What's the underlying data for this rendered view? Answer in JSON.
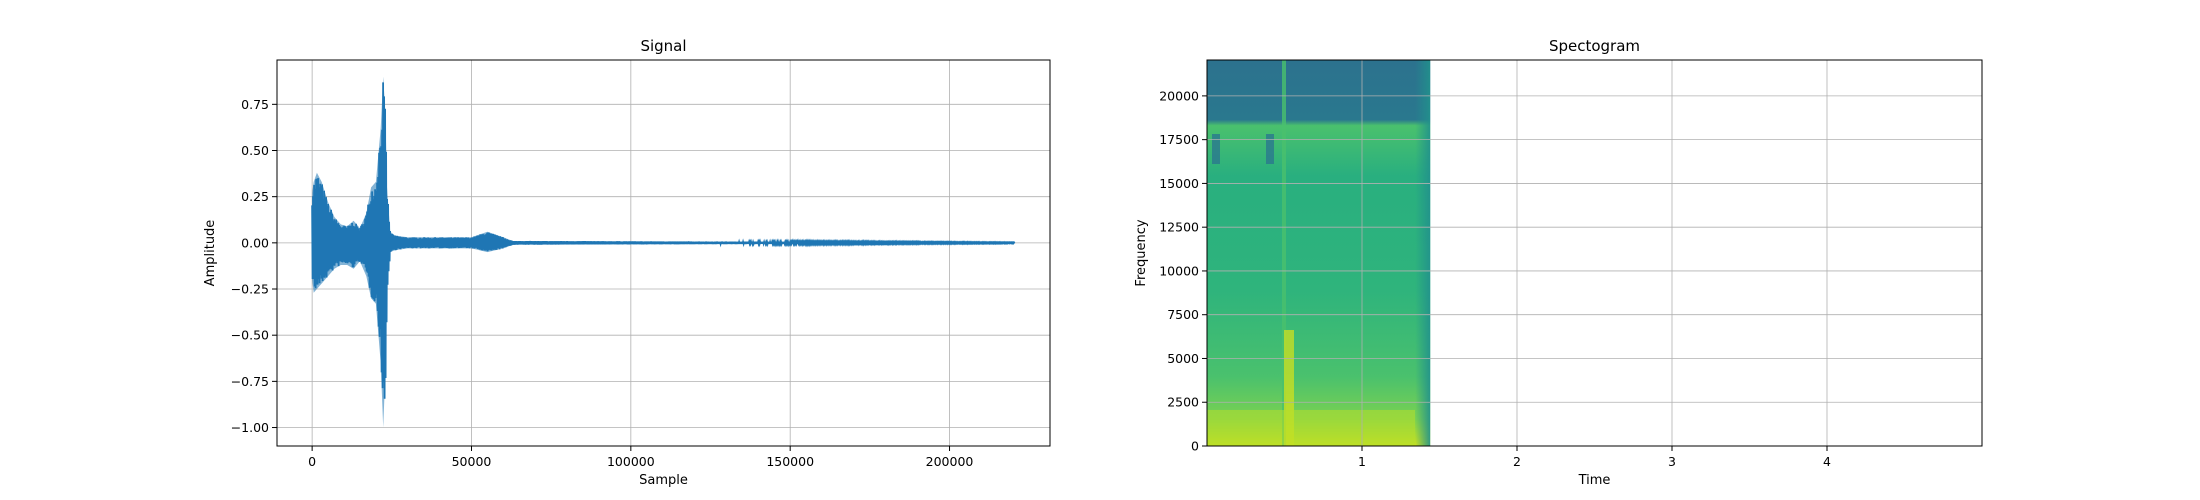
{
  "chart_data": [
    {
      "type": "line",
      "title": "Signal",
      "xlabel": "Sample",
      "ylabel": "Amplitude",
      "xlim": [
        -11025,
        231525
      ],
      "ylim": [
        -1.1,
        0.99
      ],
      "xticks": [
        0,
        50000,
        100000,
        150000,
        200000
      ],
      "xtick_labels": [
        "0",
        "50000",
        "100000",
        "150000",
        "200000"
      ],
      "yticks": [
        -1.0,
        -0.75,
        -0.5,
        -0.25,
        0.0,
        0.25,
        0.5,
        0.75
      ],
      "ytick_labels": [
        "−1.00",
        "−0.75",
        "−0.50",
        "−0.25",
        "0.00",
        "0.25",
        "0.50",
        "0.75"
      ],
      "grid": true,
      "color": "#1f77b4",
      "envelope": {
        "x": [
          0,
          500,
          1500,
          3000,
          5000,
          7000,
          9000,
          11000,
          13000,
          15000,
          17000,
          18500,
          20000,
          21500,
          22300,
          23000,
          23500,
          24500,
          26000,
          30000,
          40000,
          50000,
          55000,
          60000,
          63000,
          220500
        ],
        "max": [
          0.27,
          0.33,
          0.38,
          0.33,
          0.22,
          0.14,
          0.1,
          0.09,
          0.12,
          0.08,
          0.16,
          0.3,
          0.33,
          0.62,
          0.9,
          0.7,
          0.3,
          0.06,
          0.04,
          0.03,
          0.03,
          0.03,
          0.06,
          0.03,
          0.01,
          0.002
        ],
        "min": [
          -0.2,
          -0.27,
          -0.25,
          -0.22,
          -0.18,
          -0.14,
          -0.12,
          -0.12,
          -0.14,
          -0.1,
          -0.18,
          -0.3,
          -0.33,
          -0.65,
          -1.0,
          -0.7,
          -0.25,
          -0.05,
          -0.04,
          -0.03,
          -0.03,
          -0.03,
          -0.05,
          -0.03,
          -0.01,
          -0.002
        ]
      }
    },
    {
      "type": "heatmap",
      "title": "Spectogram",
      "xlabel": "Time",
      "ylabel": "Frequency",
      "xlim": [
        0,
        5.0
      ],
      "ylim": [
        0,
        22050
      ],
      "xticks": [
        1,
        2,
        3,
        4
      ],
      "xtick_labels": [
        "1",
        "2",
        "3",
        "4"
      ],
      "yticks": [
        0,
        2500,
        5000,
        7500,
        10000,
        12500,
        15000,
        17500,
        20000
      ],
      "ytick_labels": [
        "0",
        "2500",
        "5000",
        "7500",
        "10000",
        "12500",
        "15000",
        "17500",
        "20000"
      ],
      "grid": true,
      "colormap": "viridis",
      "data_extent_time": 1.44,
      "data_extent_freq": 22050
    }
  ]
}
